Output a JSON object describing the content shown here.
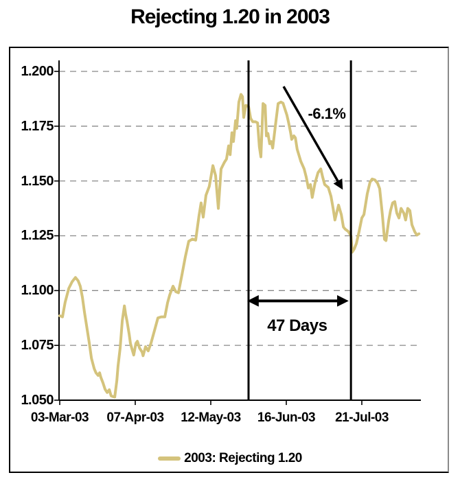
{
  "title": "Rejecting 1.20 in 2003",
  "legend": {
    "label": "2003: Rejecting 1.20",
    "swatch_color": "#d4c37c"
  },
  "colors": {
    "series": "#d4c37c",
    "gridline": "#888888",
    "axis": "#000000",
    "annotation": "#000000",
    "background": "#ffffff"
  },
  "chart_data": {
    "type": "line",
    "title": "Rejecting 1.20 in 2003",
    "xlabel": "",
    "ylabel": "",
    "ylim": [
      1.05,
      1.205
    ],
    "xlim_days": [
      0,
      119
    ],
    "grid": "horizontal-dashed",
    "legend_position": "bottom-center",
    "y_tick_labels": [
      "1.200",
      "1.175",
      "1.150",
      "1.125",
      "1.100",
      "1.075",
      "1.050"
    ],
    "x_ticks": [
      {
        "day": 0,
        "label": "03-Mar-03"
      },
      {
        "day": 25,
        "label": "07-Apr-03"
      },
      {
        "day": 50,
        "label": "12-May-03"
      },
      {
        "day": 75,
        "label": "16-Jun-03"
      },
      {
        "day": 100,
        "label": "21-Jul-03"
      }
    ],
    "vline_days": [
      62.5,
      96.4
    ],
    "annotations": [
      {
        "type": "arrow",
        "label": "-6.1%",
        "from_day": 74.1,
        "from_value": 1.1931,
        "to_day": 93.2,
        "to_value": 1.1472,
        "label_day": 88.4,
        "label_value": 1.1806
      },
      {
        "type": "double-arrow",
        "label": "47 Days",
        "value": 1.0953,
        "from_day": 63.2,
        "to_day": 94.5,
        "label_day": 78.6,
        "label_value": 1.0838
      }
    ],
    "series": [
      {
        "name": "2003: Rejecting 1.20",
        "color": "#d4c37c",
        "points": [
          [
            0,
            1.0885
          ],
          [
            0.9,
            1.088
          ],
          [
            1.8,
            1.0947
          ],
          [
            3,
            1.101
          ],
          [
            4.1,
            1.104
          ],
          [
            5.2,
            1.106
          ],
          [
            6.1,
            1.1045
          ],
          [
            6.8,
            1.102
          ],
          [
            7.5,
            1.097
          ],
          [
            8.2,
            1.09
          ],
          [
            9.1,
            1.0822
          ],
          [
            9.8,
            1.076
          ],
          [
            10.5,
            1.0691
          ],
          [
            11.4,
            1.0644
          ],
          [
            12,
            1.0625
          ],
          [
            12.7,
            1.0613
          ],
          [
            13.2,
            1.0625
          ],
          [
            13.6,
            1.0605
          ],
          [
            14.3,
            1.058
          ],
          [
            15,
            1.055
          ],
          [
            15.7,
            1.0535
          ],
          [
            16.4,
            1.0548
          ],
          [
            17,
            1.052
          ],
          [
            17.7,
            1.0516
          ],
          [
            18.2,
            1.0514
          ],
          [
            18.9,
            1.059
          ],
          [
            19.3,
            1.0655
          ],
          [
            20,
            1.0738
          ],
          [
            20.7,
            1.0863
          ],
          [
            21.4,
            1.093
          ],
          [
            21.8,
            1.0894
          ],
          [
            22.3,
            1.0859
          ],
          [
            23,
            1.08
          ],
          [
            23.4,
            1.0759
          ],
          [
            23.9,
            1.0734
          ],
          [
            24.5,
            1.0706
          ],
          [
            25.2,
            1.0759
          ],
          [
            25.7,
            1.0769
          ],
          [
            26.4,
            1.0738
          ],
          [
            27.3,
            1.0719
          ],
          [
            27.6,
            1.0703
          ],
          [
            28.4,
            1.0744
          ],
          [
            29.3,
            1.0725
          ],
          [
            30.2,
            1.076
          ],
          [
            31.4,
            1.082
          ],
          [
            32.5,
            1.0875
          ],
          [
            33.6,
            1.088
          ],
          [
            34.8,
            1.088
          ],
          [
            35.7,
            1.0945
          ],
          [
            36.4,
            1.098
          ],
          [
            37.5,
            1.102
          ],
          [
            38.4,
            1.0995
          ],
          [
            39.3,
            1.099
          ],
          [
            40.5,
            1.1075
          ],
          [
            41.6,
            1.1155
          ],
          [
            42.7,
            1.1225
          ],
          [
            43.9,
            1.1235
          ],
          [
            45,
            1.123
          ],
          [
            46.1,
            1.134
          ],
          [
            46.8,
            1.14
          ],
          [
            47.5,
            1.1335
          ],
          [
            48.4,
            1.1435
          ],
          [
            49.5,
            1.1475
          ],
          [
            50.7,
            1.157
          ],
          [
            51.6,
            1.1525
          ],
          [
            52.5,
            1.1375
          ],
          [
            53.4,
            1.1555
          ],
          [
            54.5,
            1.1585
          ],
          [
            55.2,
            1.16
          ],
          [
            55.9,
            1.166
          ],
          [
            56.4,
            1.162
          ],
          [
            57,
            1.172
          ],
          [
            57.5,
            1.168
          ],
          [
            58.2,
            1.1775
          ],
          [
            58.6,
            1.174
          ],
          [
            59.3,
            1.186
          ],
          [
            60,
            1.1895
          ],
          [
            60.5,
            1.1885
          ],
          [
            60.9,
            1.179
          ],
          [
            61.6,
            1.1845
          ],
          [
            62.5,
            1.184
          ],
          [
            63.2,
            1.1785
          ],
          [
            63.9,
            1.177
          ],
          [
            64.8,
            1.177
          ],
          [
            65.5,
            1.1765
          ],
          [
            66.1,
            1.1655
          ],
          [
            66.6,
            1.161
          ],
          [
            67.3,
            1.1853
          ],
          [
            68,
            1.1845
          ],
          [
            68.4,
            1.1706
          ],
          [
            68.9,
            1.1717
          ],
          [
            69.5,
            1.167
          ],
          [
            70,
            1.168
          ],
          [
            70.5,
            1.165
          ],
          [
            71.6,
            1.1775
          ],
          [
            72.3,
            1.1853
          ],
          [
            73.2,
            1.186
          ],
          [
            73.9,
            1.1855
          ],
          [
            74.5,
            1.183
          ],
          [
            75.2,
            1.18
          ],
          [
            75.7,
            1.177
          ],
          [
            76.4,
            1.1722
          ],
          [
            76.8,
            1.169
          ],
          [
            77.5,
            1.1706
          ],
          [
            78,
            1.1697
          ],
          [
            78.6,
            1.1645
          ],
          [
            79.8,
            1.159
          ],
          [
            80.9,
            1.1555
          ],
          [
            81.6,
            1.1518
          ],
          [
            82.3,
            1.1468
          ],
          [
            83,
            1.1484
          ],
          [
            83.6,
            1.1425
          ],
          [
            84.5,
            1.149
          ],
          [
            85.5,
            1.1538
          ],
          [
            86.4,
            1.1555
          ],
          [
            87,
            1.152
          ],
          [
            87.7,
            1.1484
          ],
          [
            88.9,
            1.147
          ],
          [
            89.8,
            1.143
          ],
          [
            90.5,
            1.1375
          ],
          [
            91.1,
            1.1322
          ],
          [
            92.3,
            1.139
          ],
          [
            93.2,
            1.1347
          ],
          [
            93.9,
            1.129
          ],
          [
            94.5,
            1.128
          ],
          [
            95.5,
            1.127
          ],
          [
            96.4,
            1.125
          ],
          [
            96.8,
            1.1175
          ],
          [
            97.5,
            1.119
          ],
          [
            98.2,
            1.1215
          ],
          [
            99.1,
            1.1269
          ],
          [
            100,
            1.1331
          ],
          [
            100.7,
            1.1347
          ],
          [
            101.8,
            1.1441
          ],
          [
            102.7,
            1.1494
          ],
          [
            103.4,
            1.1509
          ],
          [
            104.3,
            1.1505
          ],
          [
            105.2,
            1.149
          ],
          [
            105.9,
            1.1465
          ],
          [
            106.8,
            1.1347
          ],
          [
            107.5,
            1.1234
          ],
          [
            108,
            1.1228
          ],
          [
            108.9,
            1.132
          ],
          [
            109.5,
            1.1365
          ],
          [
            110.2,
            1.14
          ],
          [
            110.9,
            1.1406
          ],
          [
            111.6,
            1.1353
          ],
          [
            112.3,
            1.1331
          ],
          [
            113,
            1.1375
          ],
          [
            113.9,
            1.1353
          ],
          [
            114.5,
            1.1322
          ],
          [
            115.2,
            1.1375
          ],
          [
            115.9,
            1.1365
          ],
          [
            116.6,
            1.13
          ],
          [
            117.5,
            1.1269
          ],
          [
            118.2,
            1.1253
          ],
          [
            118.9,
            1.1259
          ]
        ]
      }
    ]
  }
}
